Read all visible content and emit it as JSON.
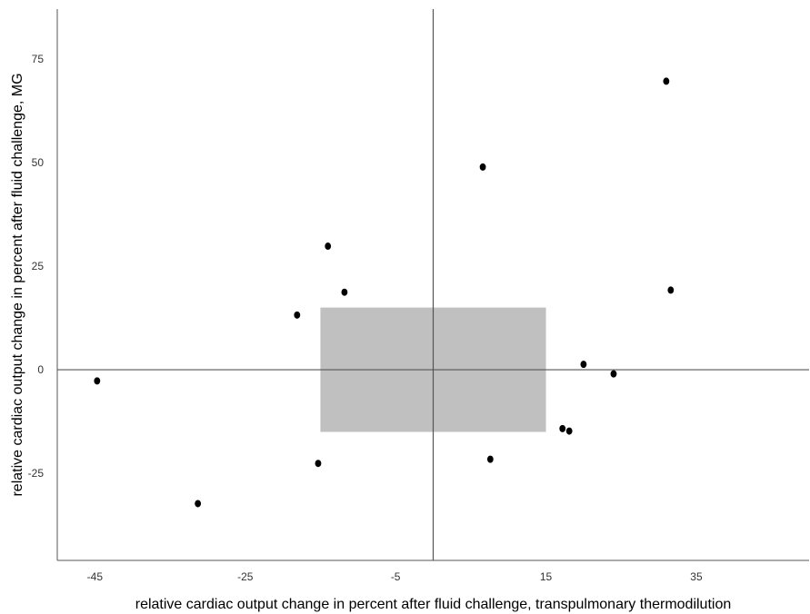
{
  "chart_data": {
    "type": "scatter",
    "xlabel": "relative cardiac output change in percent after fluid challenge, transpulmonary thermodilution",
    "ylabel": "relative cardiac output change in percent after fluid challenge, MG",
    "xlim": [
      -50,
      50
    ],
    "ylim": [
      -46,
      87
    ],
    "x_ticks": [
      -45,
      -25,
      -5,
      15,
      35
    ],
    "y_ticks": [
      -25,
      0,
      25,
      50,
      75
    ],
    "reference_lines": {
      "x": 0,
      "y": 0
    },
    "exclusion_zone": {
      "x_range": [
        -15,
        15
      ],
      "y_range": [
        -15,
        15
      ],
      "color": "#c0c0c0"
    },
    "grid": false,
    "colors": {
      "points": "#000000",
      "zone": "#c0c0c0",
      "axes": "#555555"
    },
    "points": [
      {
        "x": -44.7,
        "y": -2.7
      },
      {
        "x": -31.3,
        "y": -32.3
      },
      {
        "x": -18.1,
        "y": 13.2
      },
      {
        "x": -15.3,
        "y": -22.6
      },
      {
        "x": -14.0,
        "y": 29.8
      },
      {
        "x": -11.8,
        "y": 18.7
      },
      {
        "x": 6.6,
        "y": 48.9
      },
      {
        "x": 7.6,
        "y": -21.6
      },
      {
        "x": 17.2,
        "y": -14.2
      },
      {
        "x": 18.1,
        "y": -14.8
      },
      {
        "x": 20.0,
        "y": 1.3
      },
      {
        "x": 24.0,
        "y": -1.0
      },
      {
        "x": 31.0,
        "y": 69.6
      },
      {
        "x": 31.6,
        "y": 19.2
      }
    ]
  }
}
